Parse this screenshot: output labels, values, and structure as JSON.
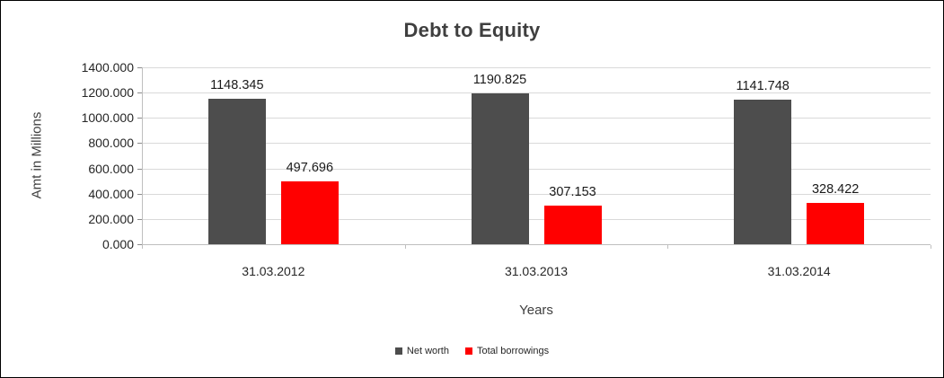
{
  "window": {
    "background": "#ffffff",
    "border_color": "#000000"
  },
  "chart_data": {
    "type": "bar",
    "title": "Debt to Equity",
    "xlabel": "Years",
    "ylabel": "Amt in Millions",
    "categories": [
      "31.03.2012",
      "31.03.2013",
      "31.03.2014"
    ],
    "series": [
      {
        "name": "Net worth",
        "color": "#4d4d4d",
        "values": [
          1148.345,
          1190.825,
          1141.748
        ]
      },
      {
        "name": "Total borrowings",
        "color": "#ff0000",
        "values": [
          497.696,
          307.153,
          328.422
        ]
      }
    ],
    "data_labels": {
      "Net worth": [
        "1148.345",
        "1190.825",
        "1141.748"
      ],
      "Total borrowings": [
        "497.696",
        "307.153",
        "328.422"
      ]
    },
    "ylim": [
      0,
      1400
    ],
    "ytick_step": 200,
    "ytick_labels": [
      "0.000",
      "200.000",
      "400.000",
      "600.000",
      "800.000",
      "1000.000",
      "1200.000",
      "1400.000"
    ],
    "grid": true,
    "legend_position": "bottom"
  }
}
